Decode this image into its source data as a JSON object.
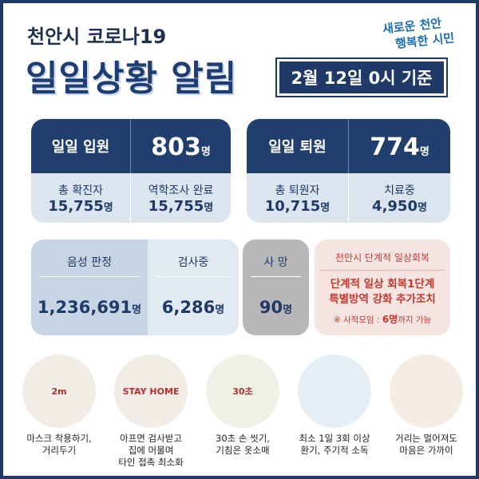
{
  "header": {
    "subtitle": "천안시 코로나19",
    "title": "일일상황 알림",
    "date": "2월 12일 0시 기준",
    "logo": [
      "새로운 천안",
      "행복한 시민"
    ]
  },
  "admission": {
    "label": "일일 입원",
    "value": "803",
    "unit": "명",
    "stats": [
      {
        "label": "총 확진자",
        "value": "15,755",
        "unit": "명"
      },
      {
        "label": "역학조사 완료",
        "value": "15,755",
        "unit": "명"
      }
    ]
  },
  "discharge": {
    "label": "일일 퇴원",
    "value": "774",
    "unit": "명",
    "stats": [
      {
        "label": "총 퇴원자",
        "value": "10,715",
        "unit": "명"
      },
      {
        "label": "치료중",
        "value": "4,950",
        "unit": "명"
      }
    ]
  },
  "tests": [
    {
      "label": "음성 판정",
      "value": "1,236,691",
      "unit": "명"
    },
    {
      "label": "검사중",
      "value": "6,286",
      "unit": "명"
    }
  ],
  "deaths": {
    "label": "사 망",
    "value": "90",
    "unit": "명"
  },
  "notice": {
    "title": "천안시 단계적 일상회복",
    "lines": [
      "단계적 일상 회복1단계",
      "특별방역 강화 추가조치"
    ],
    "note_prefix": "※ 사적모임 : ",
    "note_highlight": "6명",
    "note_suffix": "까지 가능"
  },
  "tips": [
    {
      "badge": "2m",
      "caption": [
        "마스크 착용하기,",
        "거리두기"
      ]
    },
    {
      "badge": "STAY HOME",
      "caption": [
        "아프면 검사받고",
        "집에 머물며",
        "타인 접촉 최소화"
      ]
    },
    {
      "badge": "30초",
      "caption": [
        "30초 손 씻기,",
        "기침은 옷소매"
      ]
    },
    {
      "badge": null,
      "caption": [
        "최소 1일 3회 이상",
        "환기, 주기적 소독"
      ]
    },
    {
      "badge": null,
      "caption": [
        "거리는 멀어져도",
        "마음은 가까이"
      ]
    }
  ]
}
